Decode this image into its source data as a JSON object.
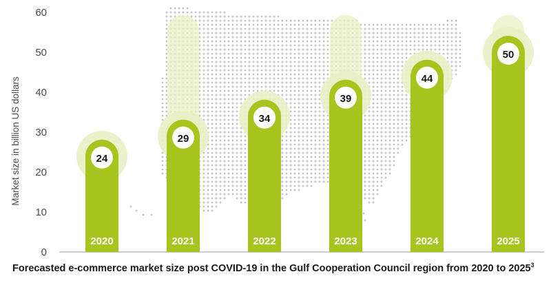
{
  "chart_data": {
    "type": "bar",
    "categories": [
      "2020",
      "2021",
      "2022",
      "2023",
      "2024",
      "2025"
    ],
    "values": [
      24,
      29,
      34,
      39,
      44,
      50
    ],
    "title": "",
    "xlabel": "",
    "ylabel": "Market size in billion US dollars",
    "ylim": [
      0,
      60
    ],
    "yticks": [
      "0",
      "10",
      "20",
      "30",
      "40",
      "50",
      "60"
    ],
    "grid": false,
    "legend": "none"
  },
  "caption": {
    "text": "Forecasted e-commerce market size post COVID-19 in the Gulf Cooperation Council region from 2020 to 2025",
    "footnote": "3"
  },
  "background_map": "dotted map of the United States (decorative)",
  "colors": {
    "bar": "#a8c41f",
    "halo": "#e9f0c4",
    "map_dots": "#c8c8c8",
    "axis_text": "#4d4d4d",
    "label_circle": "#ffffff"
  }
}
